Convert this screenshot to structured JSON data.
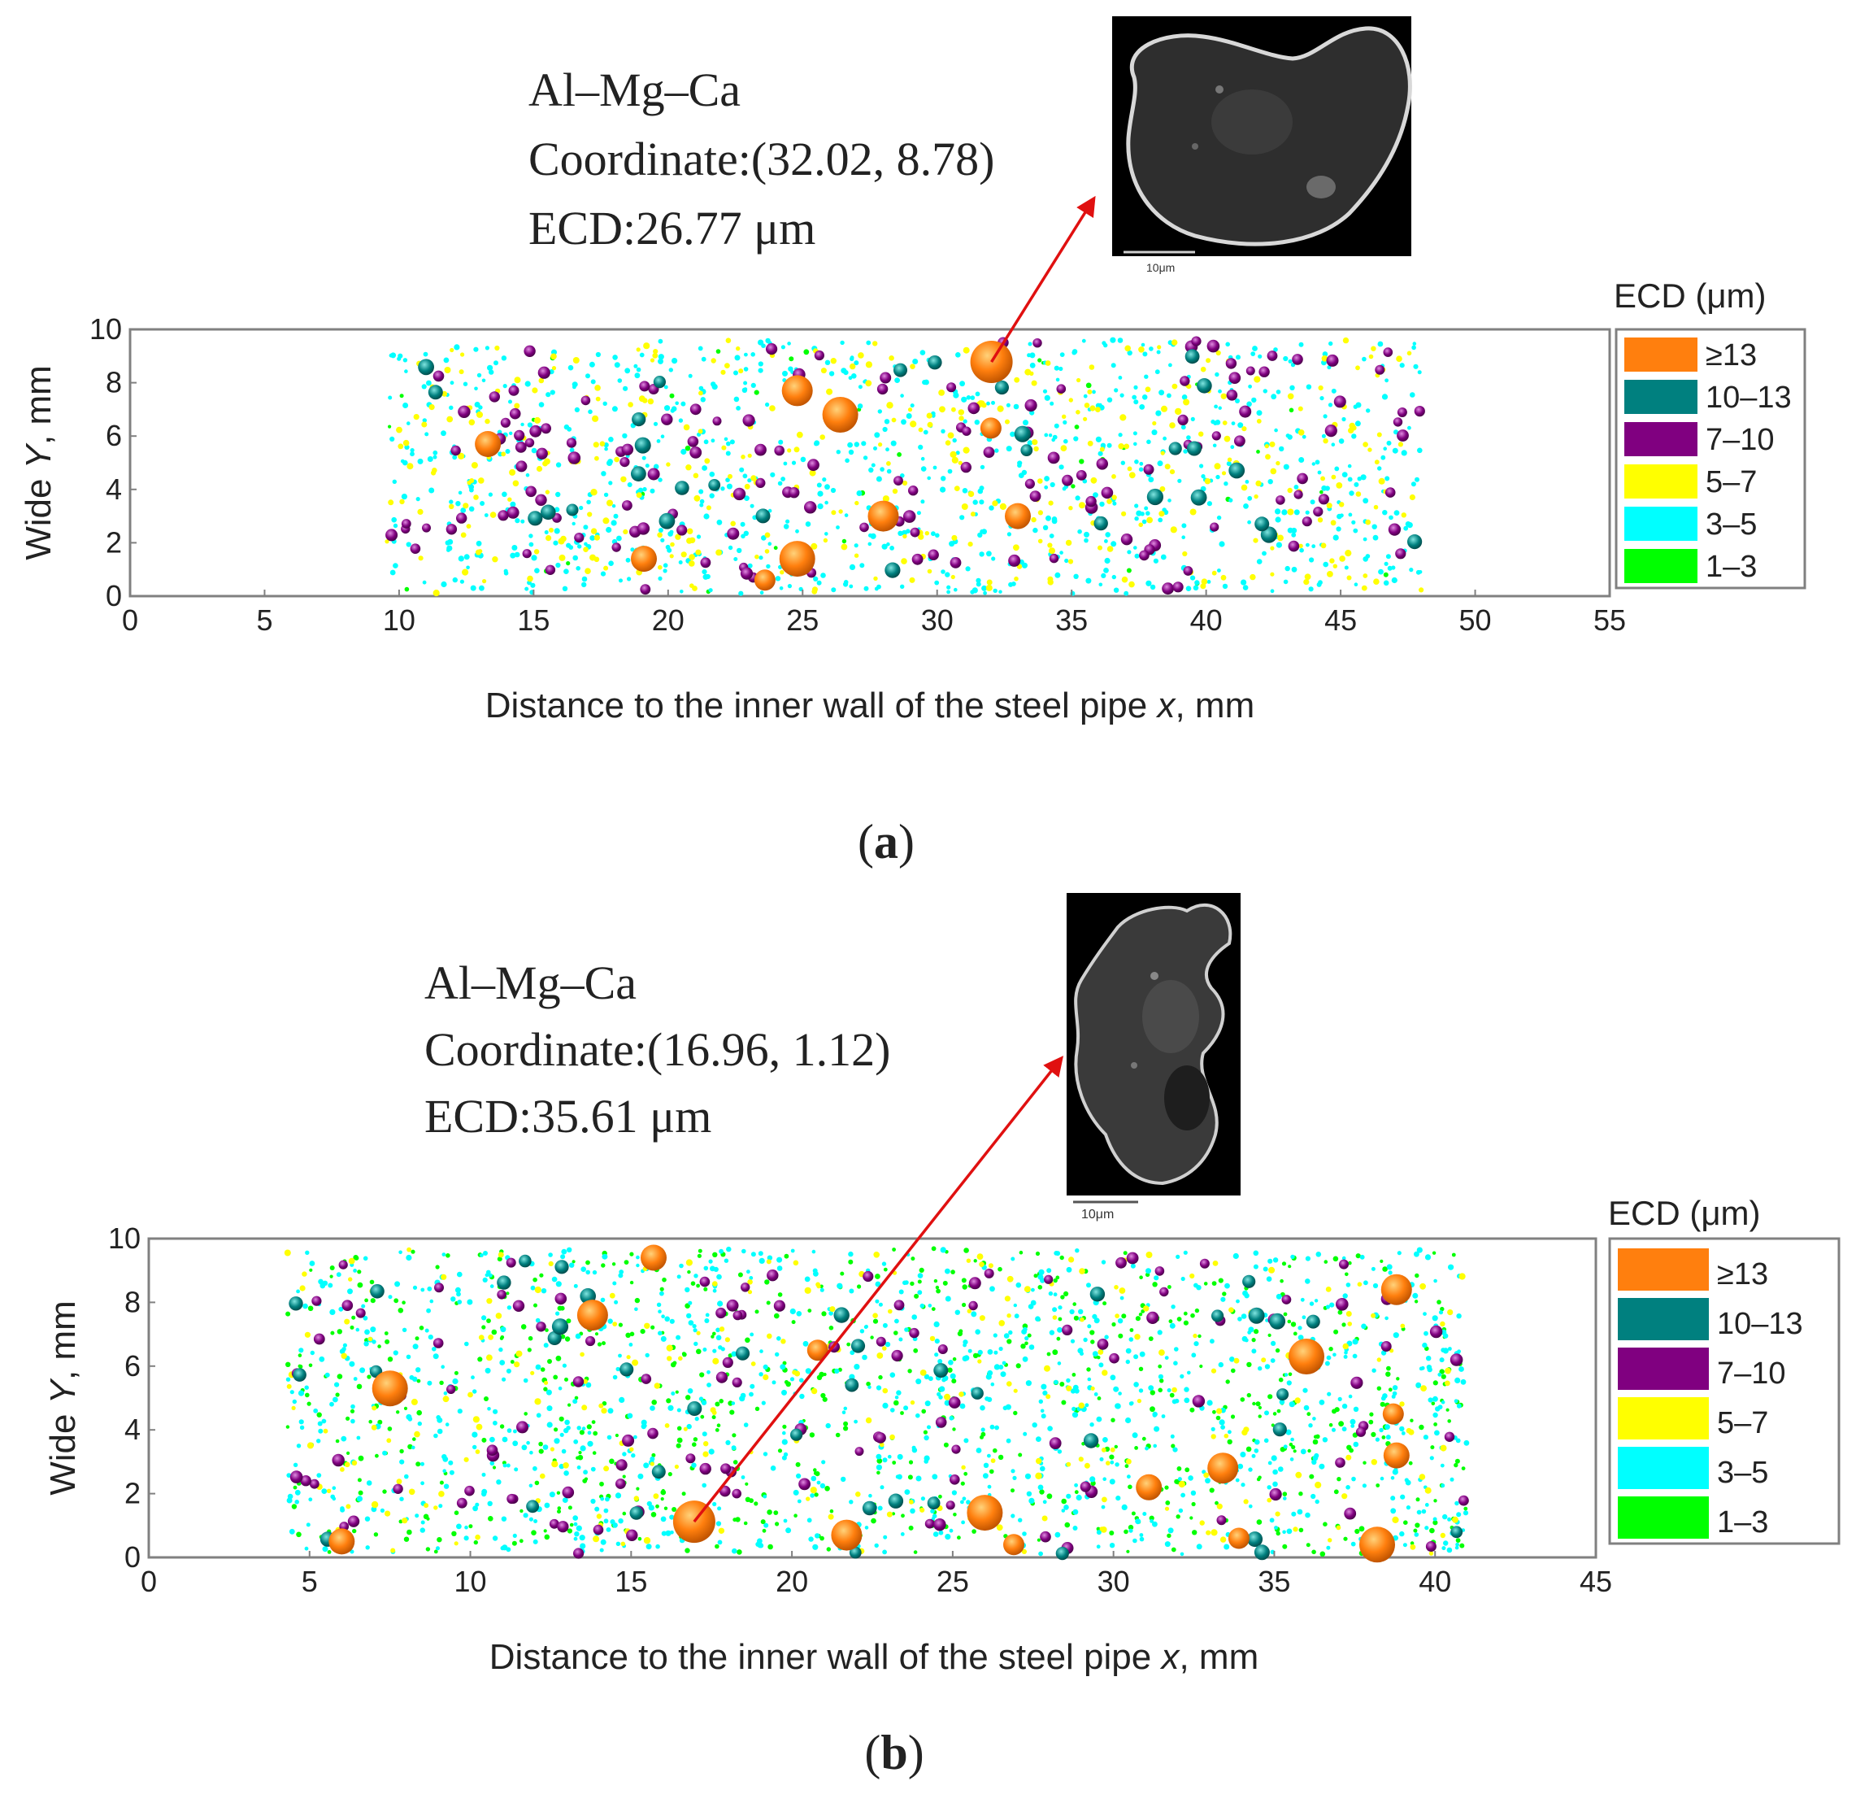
{
  "chart_data": [
    {
      "type": "scatter",
      "panel_label": "a",
      "xlabel_pre": "Distance to the inner wall of the steel pipe ",
      "xlabel_var": "x",
      "xlabel_post": ", mm",
      "ylabel_pre": "Wide ",
      "ylabel_var": "Y",
      "ylabel_post": ", mm",
      "xlim": [
        0,
        55
      ],
      "ylim": [
        0,
        10
      ],
      "xticks": [
        "0",
        "5",
        "10",
        "15",
        "20",
        "25",
        "30",
        "35",
        "40",
        "45",
        "50",
        "55"
      ],
      "yticks": [
        "0",
        "2",
        "4",
        "6",
        "8",
        "10"
      ],
      "legend_title": "ECD (μm)",
      "legend_position": "right",
      "legend": [
        {
          "label": "≥13",
          "color": "#ff7f0e"
        },
        {
          "label": "10–13",
          "color": "#00807f"
        },
        {
          "label": "7–10",
          "color": "#800080"
        },
        {
          "label": "5–7",
          "color": "#ffff00"
        },
        {
          "label": "3–5",
          "color": "#00ffff"
        },
        {
          "label": "1–3",
          "color": "#00ff00"
        }
      ],
      "point_region": {
        "xmin": 9.5,
        "xmax": 48.0,
        "ymin": 0.1,
        "ymax": 9.6
      },
      "large_inclusions": [
        [
          32.02,
          8.78
        ],
        [
          13.3,
          5.7
        ],
        [
          24.8,
          7.7
        ],
        [
          26.4,
          6.8
        ],
        [
          32.0,
          6.3
        ],
        [
          33.0,
          3.0
        ],
        [
          28.0,
          3.0
        ],
        [
          24.8,
          1.4
        ],
        [
          23.6,
          0.6
        ],
        [
          19.1,
          1.4
        ]
      ],
      "highlight": {
        "x": 32.02,
        "y": 8.78,
        "line1": "Al–Mg–Ca",
        "line2": "Coordinate:(32.02, 8.78)",
        "line3": "ECD:26.77 μm",
        "scale": "10μm"
      }
    },
    {
      "type": "scatter",
      "panel_label": "b",
      "xlabel_pre": "Distance to the inner wall of the steel pipe ",
      "xlabel_var": "x",
      "xlabel_post": ", mm",
      "ylabel_pre": "Wide ",
      "ylabel_var": "Y",
      "ylabel_post": ", mm",
      "xlim": [
        0,
        45
      ],
      "ylim": [
        0,
        10
      ],
      "xticks": [
        "0",
        "5",
        "10",
        "15",
        "20",
        "25",
        "30",
        "35",
        "40",
        "45"
      ],
      "yticks": [
        "0",
        "2",
        "4",
        "6",
        "8",
        "10"
      ],
      "legend_title": "ECD (μm)",
      "legend_position": "right",
      "legend": [
        {
          "label": "≥13",
          "color": "#ff7f0e"
        },
        {
          "label": "10–13",
          "color": "#00807f"
        },
        {
          "label": "7–10",
          "color": "#800080"
        },
        {
          "label": "5–7",
          "color": "#ffff00"
        },
        {
          "label": "3–5",
          "color": "#00ffff"
        },
        {
          "label": "1–3",
          "color": "#00ff00"
        }
      ],
      "point_region": {
        "xmin": 4.3,
        "xmax": 41.0,
        "ymin": 0.1,
        "ymax": 9.7
      },
      "large_inclusions": [
        [
          16.96,
          1.12
        ],
        [
          15.7,
          9.4
        ],
        [
          13.8,
          7.6
        ],
        [
          7.5,
          5.3
        ],
        [
          20.8,
          6.5
        ],
        [
          6.0,
          0.5
        ],
        [
          21.7,
          0.7
        ],
        [
          26.0,
          1.4
        ],
        [
          26.9,
          0.4
        ],
        [
          31.1,
          2.2
        ],
        [
          33.4,
          2.8
        ],
        [
          36.0,
          6.3
        ],
        [
          38.7,
          4.5
        ],
        [
          38.8,
          3.2
        ],
        [
          38.8,
          8.4
        ],
        [
          38.2,
          0.4
        ],
        [
          33.9,
          0.6
        ]
      ],
      "highlight": {
        "x": 16.96,
        "y": 1.12,
        "line1": "Al–Mg–Ca",
        "line2": "Coordinate:(16.96, 1.12)",
        "line3": "ECD:35.61 μm",
        "scale": "10μm"
      }
    }
  ]
}
